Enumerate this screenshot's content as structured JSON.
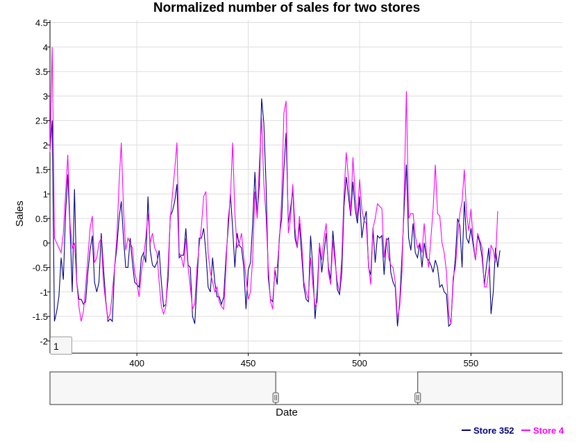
{
  "roller_value": "1",
  "chart_data": {
    "type": "line",
    "title": "Normalized number of sales for two stores",
    "xlabel": "Date",
    "ylabel": "Sales",
    "xlim": [
      361,
      591
    ],
    "ylim": [
      -2.25,
      4.55
    ],
    "yticks": [
      "4.5",
      "4",
      "3.5",
      "3",
      "2.5",
      "2",
      "1.5",
      "1",
      "0.5",
      "0",
      "-0.5",
      "-1",
      "-1.5",
      "-2"
    ],
    "ytick_values": [
      4.5,
      4,
      3.5,
      3,
      2.5,
      2,
      1.5,
      1,
      0.5,
      0,
      -0.5,
      -1,
      -1.5,
      -2
    ],
    "xticks": [
      "400",
      "450",
      "500",
      "550"
    ],
    "xtick_values": [
      400,
      450,
      500,
      550
    ],
    "grid": true,
    "legend_position": "bottom-right",
    "range_selector_window": [
      450,
      506
    ],
    "series": [
      {
        "name": "Store 352",
        "color": "#000080",
        "values": [
          1.9,
          2.5,
          -1.6,
          -1.4,
          -1.1,
          -0.3,
          -0.75,
          0.6,
          1.4,
          0.3,
          -1.0,
          1.1,
          -0.8,
          -1.15,
          -1.15,
          -1.25,
          -1.2,
          -0.6,
          -0.15,
          0.15,
          -0.8,
          -1.0,
          -0.8,
          0.2,
          -0.5,
          -1.15,
          -1.6,
          -1.55,
          -1.6,
          -0.5,
          -0.1,
          0.5,
          0.85,
          0.1,
          -0.5,
          -0.5,
          0.1,
          -0.4,
          -0.8,
          -0.85,
          -0.9,
          -0.3,
          -0.2,
          -0.4,
          0.95,
          -0.15,
          -0.45,
          -0.5,
          -0.4,
          -0.15,
          -0.8,
          -1.3,
          -1.25,
          -0.75,
          0.55,
          0.65,
          0.85,
          1.2,
          -0.3,
          -0.25,
          -0.25,
          0.3,
          -0.45,
          -0.5,
          -1.5,
          -1.65,
          -0.8,
          0.1,
          0.1,
          0.3,
          -0.2,
          -0.9,
          -1.0,
          -0.3,
          -0.8,
          -1.1,
          -1.1,
          -1.25,
          -1.1,
          -0.3,
          0.3,
          1.0,
          0.3,
          -0.5,
          0.2,
          -0.05,
          -0.1,
          -0.5,
          -1.35,
          -0.55,
          -0.4,
          0.4,
          1.45,
          0.55,
          1.2,
          2.95,
          2.45,
          1.2,
          -0.7,
          -1.15,
          -1.2,
          -0.55,
          -0.85,
          0.15,
          0.5,
          1.5,
          2.25,
          0.4,
          0.7,
          1.1,
          0.1,
          -0.1,
          0.4,
          -0.25,
          -0.9,
          -1.15,
          -1.2,
          0.15,
          -0.5,
          -1.55,
          -0.95,
          0.0,
          -0.6,
          -0.2,
          0.2,
          -0.5,
          -0.75,
          0.25,
          -0.3,
          -0.95,
          -1.05,
          -0.6,
          0.75,
          1.35,
          0.95,
          0.55,
          1.25,
          0.7,
          0.4,
          0.95,
          0.1,
          0.45,
          0.65,
          -0.5,
          -0.65,
          0.3,
          -0.4,
          0.15,
          0.1,
          0.15,
          -0.65,
          0.05,
          0.1,
          -0.6,
          -0.8,
          -0.9,
          -1.7,
          -1.2,
          -0.3,
          0.7,
          1.6,
          0.1,
          -0.15,
          0.4,
          -0.2,
          -0.3,
          0.0,
          -0.5,
          0.0,
          -0.3,
          -0.35,
          -0.45,
          -0.6,
          -0.35,
          -0.5,
          -0.9,
          -0.85,
          -1.0,
          -1.05,
          -1.7,
          -1.65,
          -0.8,
          -0.3,
          0.5,
          0.35,
          -0.5,
          0.85,
          0.1,
          0.0,
          0.3,
          -0.05,
          -0.35,
          0.15,
          0.0,
          -0.3,
          -0.85,
          -0.45,
          -0.1,
          -1.45,
          -1.0,
          -0.1,
          -0.5,
          -0.15
        ]
      },
      {
        "name": "Store 4",
        "color": "#ff00ff",
        "values": [
          1.85,
          4.0,
          0.1,
          0.0,
          -0.1,
          -0.2,
          0.2,
          1.0,
          1.8,
          0.4,
          -0.1,
          0.0,
          -0.8,
          -1.3,
          -1.6,
          -1.4,
          -0.9,
          -0.3,
          0.3,
          0.55,
          -0.4,
          -0.3,
          0.0,
          0.1,
          -0.8,
          -1.2,
          -1.55,
          -1.45,
          -1.0,
          -0.5,
          0.1,
          1.2,
          2.05,
          0.7,
          -0.15,
          0.1,
          0.0,
          -0.1,
          -0.6,
          -0.8,
          -1.1,
          -0.6,
          -0.3,
          0.1,
          0.6,
          0.0,
          0.2,
          -0.1,
          -0.2,
          -0.8,
          -1.3,
          -1.45,
          -1.3,
          -0.5,
          0.5,
          1.0,
          1.5,
          2.05,
          -0.2,
          -0.3,
          -0.5,
          0.1,
          -0.5,
          -0.9,
          -1.35,
          -1.25,
          -0.5,
          -0.05,
          0.35,
          0.95,
          1.05,
          -0.2,
          -0.6,
          -0.8,
          -1.0,
          -0.9,
          -1.2,
          -1.3,
          -1.35,
          -0.5,
          0.5,
          0.9,
          2.05,
          0.6,
          -0.1,
          0.0,
          0.2,
          -0.3,
          -0.7,
          -1.15,
          -1.0,
          -0.3,
          1.05,
          0.5,
          1.6,
          2.55,
          1.2,
          0.55,
          -0.5,
          -1.2,
          -1.35,
          -0.5,
          -0.5,
          0.05,
          0.9,
          2.65,
          2.9,
          0.2,
          0.5,
          1.2,
          0.3,
          -0.1,
          0.55,
          0.0,
          -0.8,
          -1.0,
          -1.15,
          -0.3,
          -0.85,
          -1.3,
          -1.2,
          0.0,
          -0.35,
          0.1,
          0.4,
          -0.6,
          -0.85,
          0.05,
          -0.4,
          -0.8,
          -1.0,
          -0.3,
          1.0,
          1.85,
          1.3,
          0.6,
          1.75,
          1.0,
          0.5,
          1.3,
          0.7,
          0.45,
          0.4,
          -0.45,
          -0.85,
          0.3,
          0.5,
          0.8,
          0.75,
          0.7,
          -0.3,
          0.1,
          -0.3,
          -0.45,
          -0.5,
          -0.8,
          -1.55,
          -1.3,
          -0.6,
          1.0,
          3.1,
          0.5,
          0.6,
          0.6,
          0.15,
          -0.1,
          0.0,
          -0.2,
          0.4,
          -0.2,
          -0.5,
          0.1,
          0.7,
          1.6,
          0.6,
          0.55,
          0.0,
          -0.2,
          -0.6,
          -1.45,
          -1.65,
          -0.7,
          -0.5,
          0.1,
          0.6,
          0.85,
          1.5,
          0.6,
          0.25,
          0.7,
          0.05,
          -0.35,
          0.2,
          0.05,
          -0.1,
          -0.9,
          -0.9,
          -0.55,
          -0.05,
          -0.15,
          -0.4,
          0.65
        ]
      }
    ]
  }
}
